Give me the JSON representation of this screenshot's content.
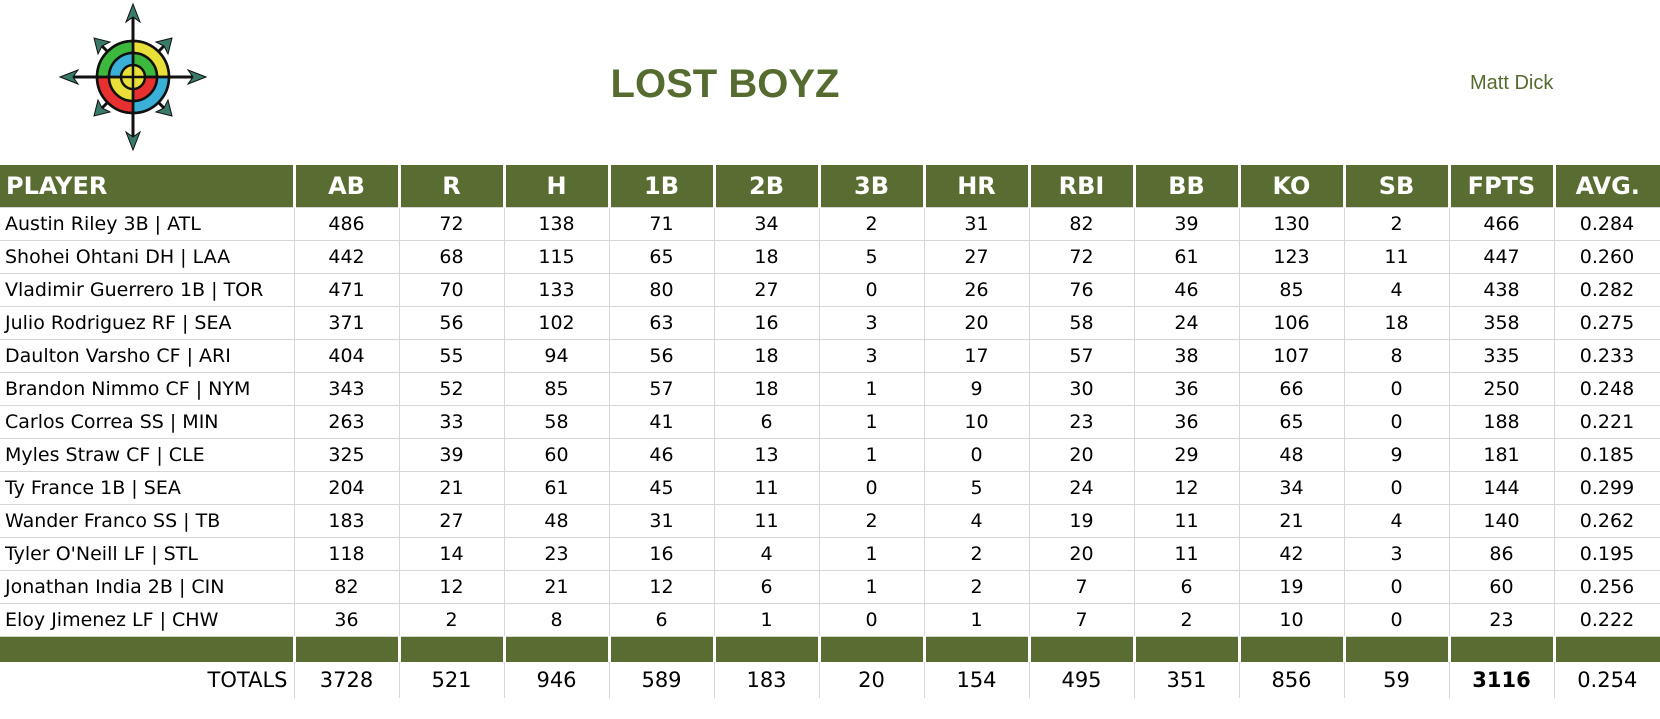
{
  "header": {
    "team_name": "LOST BOYZ",
    "owner": "Matt Dick",
    "logo_icon": "compass-target-icon"
  },
  "table": {
    "columns": [
      "PLAYER",
      "AB",
      "R",
      "H",
      "1B",
      "2B",
      "3B",
      "HR",
      "RBI",
      "BB",
      "KO",
      "SB",
      "FPTS",
      "AVG."
    ],
    "rows": [
      [
        "Austin Riley 3B | ATL",
        "486",
        "72",
        "138",
        "71",
        "34",
        "2",
        "31",
        "82",
        "39",
        "130",
        "2",
        "466",
        "0.284"
      ],
      [
        "Shohei Ohtani DH | LAA",
        "442",
        "68",
        "115",
        "65",
        "18",
        "5",
        "27",
        "72",
        "61",
        "123",
        "11",
        "447",
        "0.260"
      ],
      [
        "Vladimir Guerrero 1B | TOR",
        "471",
        "70",
        "133",
        "80",
        "27",
        "0",
        "26",
        "76",
        "46",
        "85",
        "4",
        "438",
        "0.282"
      ],
      [
        "Julio Rodriguez RF | SEA",
        "371",
        "56",
        "102",
        "63",
        "16",
        "3",
        "20",
        "58",
        "24",
        "106",
        "18",
        "358",
        "0.275"
      ],
      [
        "Daulton Varsho CF | ARI",
        "404",
        "55",
        "94",
        "56",
        "18",
        "3",
        "17",
        "57",
        "38",
        "107",
        "8",
        "335",
        "0.233"
      ],
      [
        "Brandon Nimmo CF | NYM",
        "343",
        "52",
        "85",
        "57",
        "18",
        "1",
        "9",
        "30",
        "36",
        "66",
        "0",
        "250",
        "0.248"
      ],
      [
        "Carlos Correa SS | MIN",
        "263",
        "33",
        "58",
        "41",
        "6",
        "1",
        "10",
        "23",
        "36",
        "65",
        "0",
        "188",
        "0.221"
      ],
      [
        "Myles Straw CF | CLE",
        "325",
        "39",
        "60",
        "46",
        "13",
        "1",
        "0",
        "20",
        "29",
        "48",
        "9",
        "181",
        "0.185"
      ],
      [
        "Ty France 1B | SEA",
        "204",
        "21",
        "61",
        "45",
        "11",
        "0",
        "5",
        "24",
        "12",
        "34",
        "0",
        "144",
        "0.299"
      ],
      [
        "Wander Franco SS | TB",
        "183",
        "27",
        "48",
        "31",
        "11",
        "2",
        "4",
        "19",
        "11",
        "21",
        "4",
        "140",
        "0.262"
      ],
      [
        "Tyler O'Neill LF | STL",
        "118",
        "14",
        "23",
        "16",
        "4",
        "1",
        "2",
        "20",
        "11",
        "42",
        "3",
        "86",
        "0.195"
      ],
      [
        "Jonathan India 2B | CIN",
        "82",
        "12",
        "21",
        "12",
        "6",
        "1",
        "2",
        "7",
        "6",
        "19",
        "0",
        "60",
        "0.256"
      ],
      [
        "Eloy Jimenez LF | CHW",
        "36",
        "2",
        "8",
        "6",
        "1",
        "0",
        "1",
        "7",
        "2",
        "10",
        "0",
        "23",
        "0.222"
      ]
    ],
    "totals": [
      "TOTALS",
      "3728",
      "521",
      "946",
      "589",
      "183",
      "20",
      "154",
      "495",
      "351",
      "856",
      "59",
      "3116",
      "0.254"
    ]
  },
  "colors": {
    "header_green": "#596d32",
    "title_green": "#556b2f"
  }
}
